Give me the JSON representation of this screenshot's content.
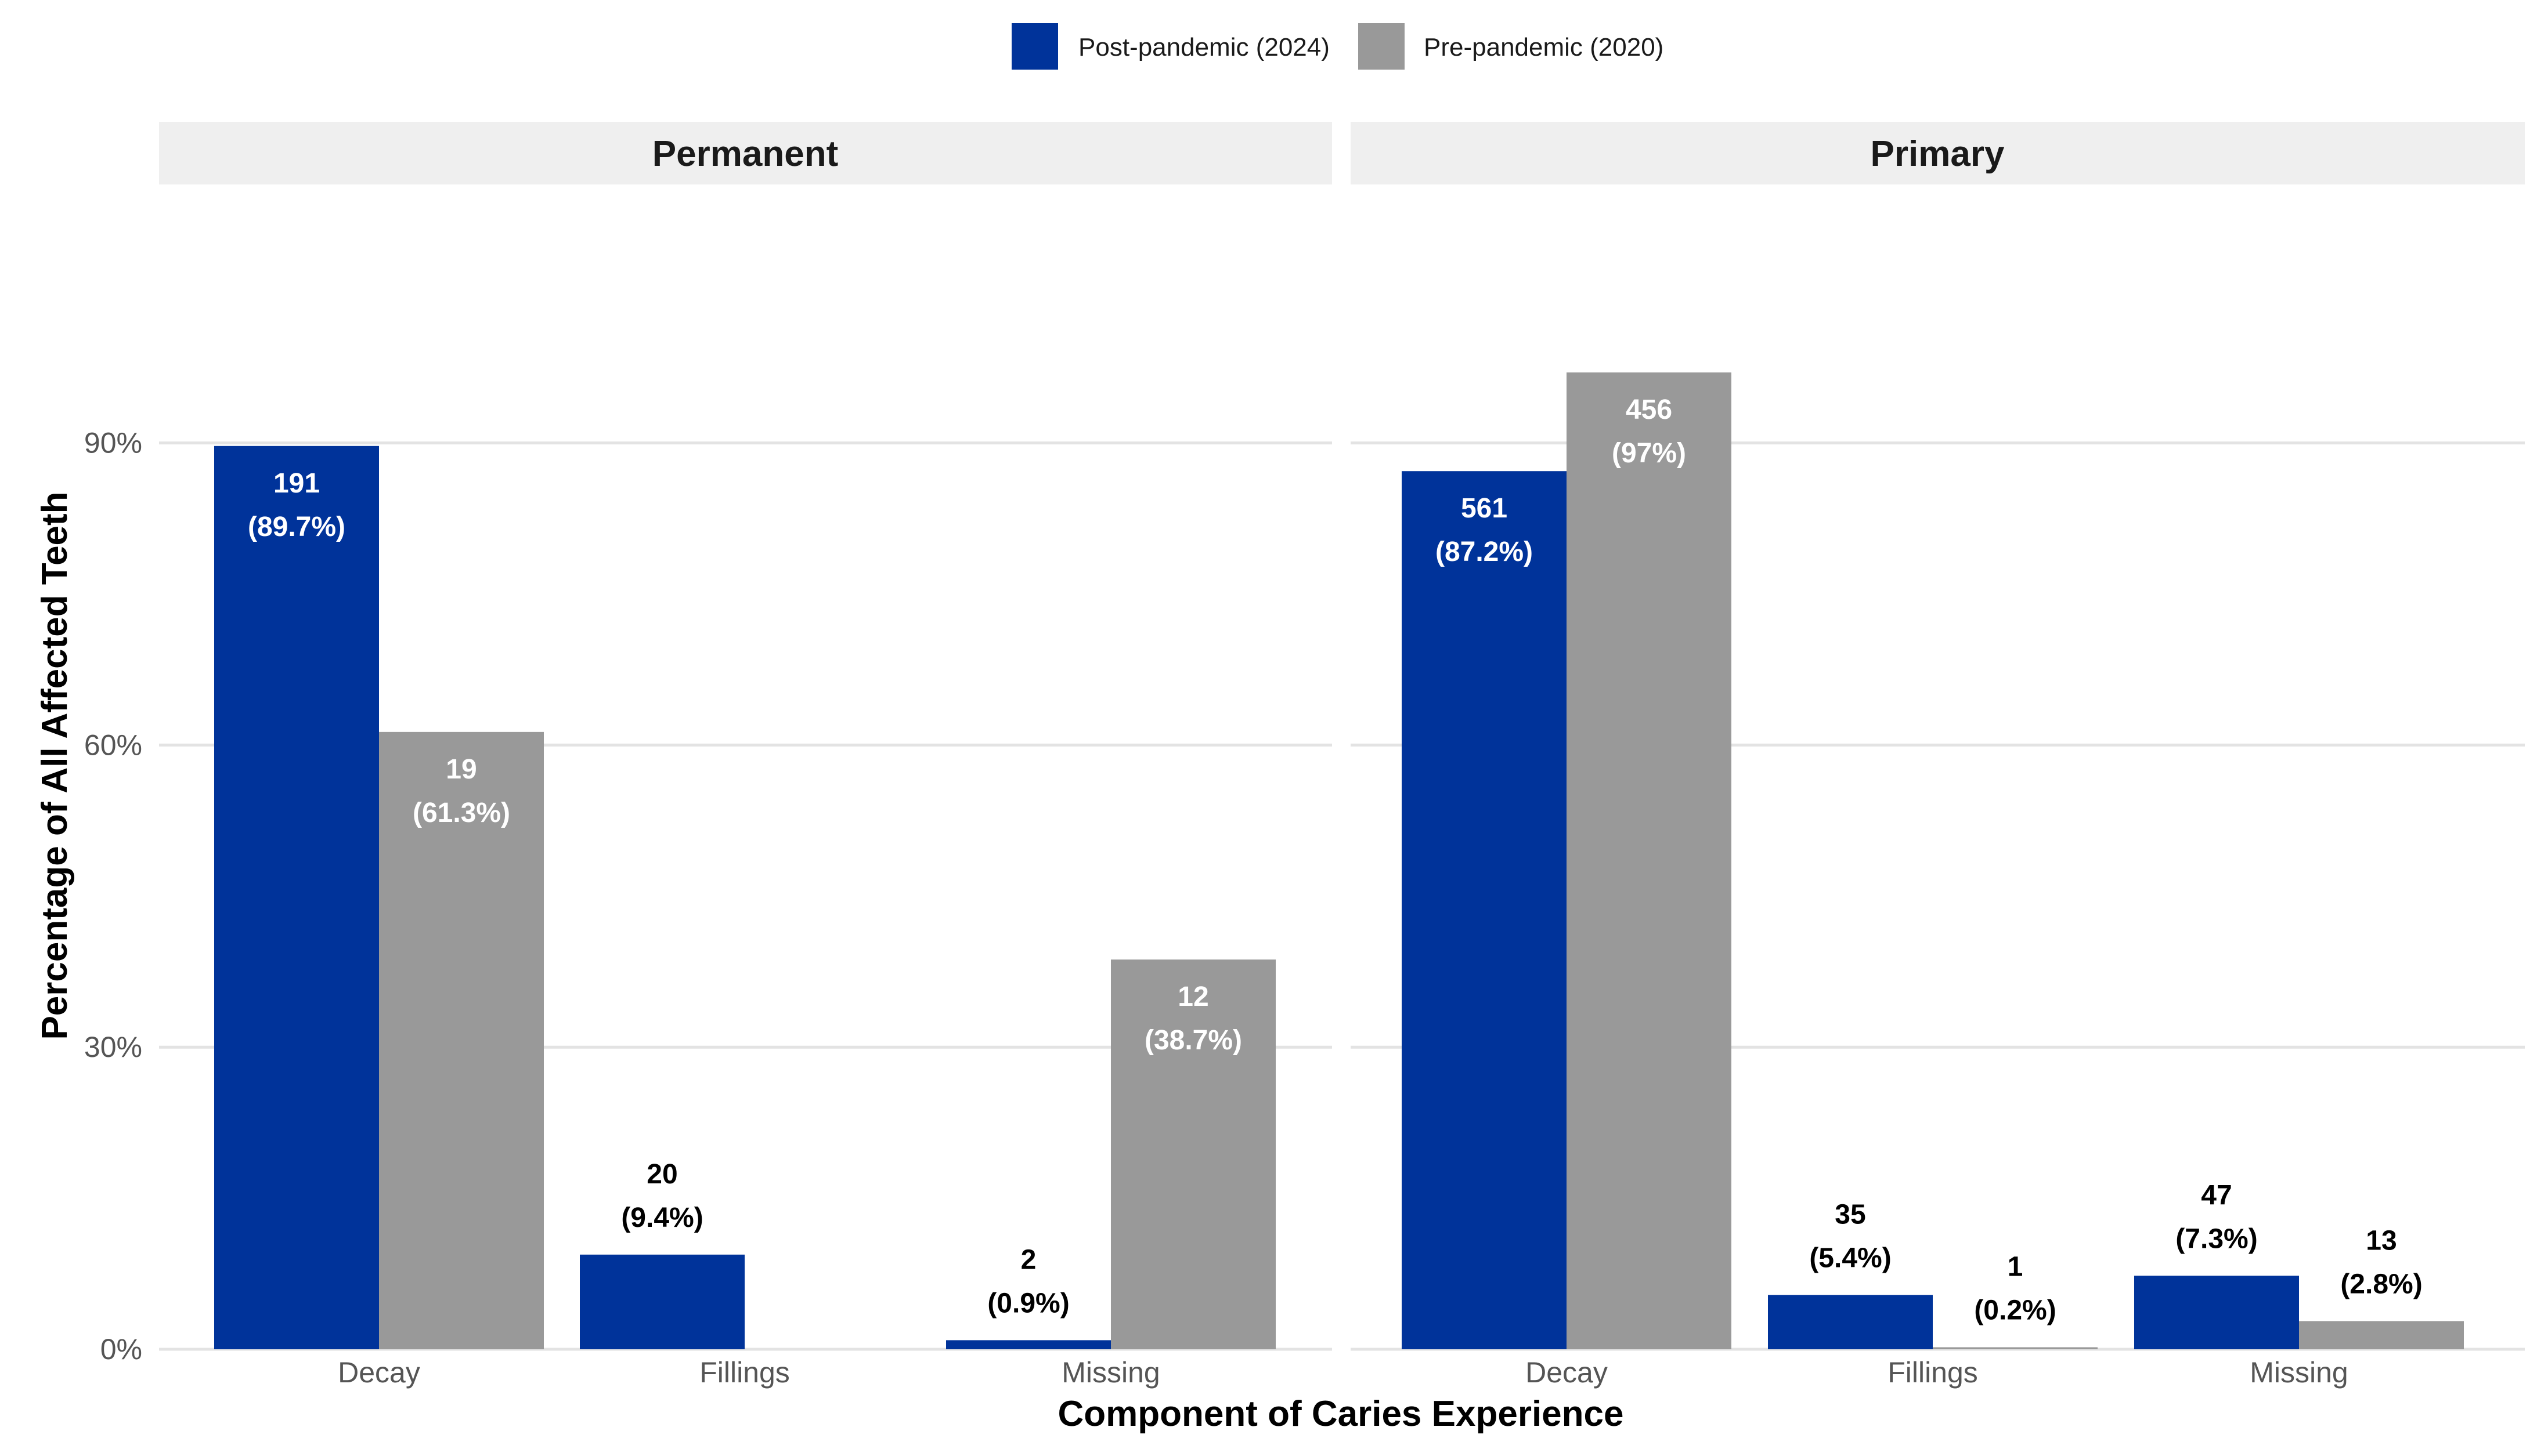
{
  "chart_data": {
    "type": "bar",
    "xlabel": "Component of Caries Experience",
    "ylabel": "Percentage of All Affected Teeth",
    "ylim": [
      0,
      100
    ],
    "y_ticks": [
      0,
      30,
      60,
      90
    ],
    "y_tick_labels": [
      "0%",
      "30%",
      "60%",
      "90%"
    ],
    "grid": true,
    "legend_position": "top",
    "categories": [
      "Decay",
      "Fillings",
      "Missing"
    ],
    "series": [
      {
        "name": "Post-pandemic (2024)",
        "color": "#00339A"
      },
      {
        "name": "Pre-pandemic (2020)",
        "color": "#999999"
      }
    ],
    "panels": [
      {
        "title": "Permanent",
        "bars": [
          [
            {
              "value": 89.7,
              "count": "191",
              "pct": "(89.7%)"
            },
            {
              "value": 61.3,
              "count": "19",
              "pct": "(61.3%)"
            }
          ],
          [
            {
              "value": 9.4,
              "count": "20",
              "pct": "(9.4%)"
            },
            null
          ],
          [
            {
              "value": 0.9,
              "count": "2",
              "pct": "(0.9%)"
            },
            {
              "value": 38.7,
              "count": "12",
              "pct": "(38.7%)"
            }
          ]
        ]
      },
      {
        "title": "Primary",
        "bars": [
          [
            {
              "value": 87.2,
              "count": "561",
              "pct": "(87.2%)"
            },
            {
              "value": 97,
              "count": "456",
              "pct": "(97%)"
            }
          ],
          [
            {
              "value": 5.4,
              "count": "35",
              "pct": "(5.4%)"
            },
            {
              "value": 0.2,
              "count": "1",
              "pct": "(0.2%)"
            }
          ],
          [
            {
              "value": 7.3,
              "count": "47",
              "pct": "(7.3%)"
            },
            {
              "value": 2.8,
              "count": "13",
              "pct": "(2.8%)"
            }
          ]
        ]
      }
    ]
  }
}
